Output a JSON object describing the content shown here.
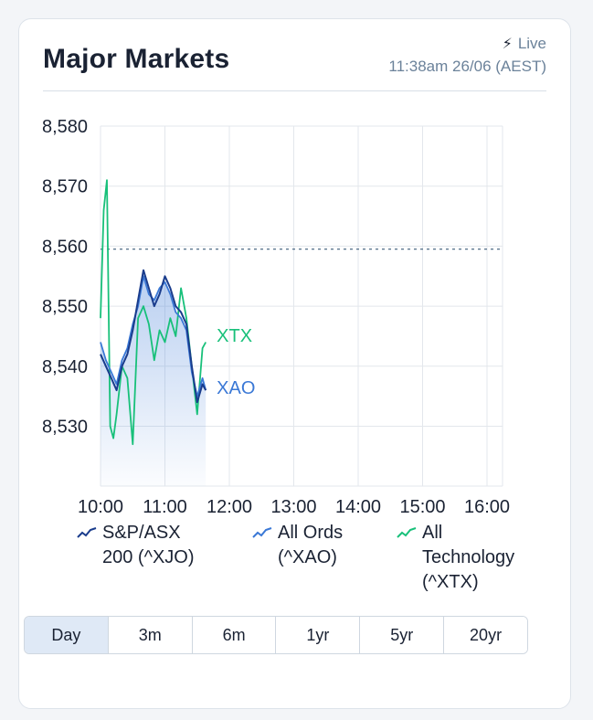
{
  "header": {
    "title": "Major Markets",
    "live_label": "Live",
    "timestamp": "11:38am 26/06 (AEST)"
  },
  "colors": {
    "xjo": "#1a3c8c",
    "xao": "#3a78d6",
    "xtx": "#18c07a",
    "grid": "#e3e7ec",
    "dashed": "#3f5d7a"
  },
  "chart_data": {
    "type": "line",
    "x_ticks": [
      "10:00",
      "11:00",
      "12:00",
      "13:00",
      "14:00",
      "15:00",
      "16:00"
    ],
    "y_ticks": [
      "8,580",
      "8,570",
      "8,560",
      "8,550",
      "8,540",
      "8,530"
    ],
    "ylim": [
      8520,
      8580
    ],
    "xlim": [
      "10:00",
      "16:10"
    ],
    "reference_line": 8559.5,
    "grid": true,
    "series": [
      {
        "name": "S&P/ASX 200 (^XJO)",
        "color_key": "xjo",
        "x": [
          "10:00",
          "10:05",
          "10:10",
          "10:15",
          "10:20",
          "10:25",
          "10:30",
          "10:35",
          "10:40",
          "10:45",
          "10:50",
          "10:55",
          "11:00",
          "11:05",
          "11:10",
          "11:15",
          "11:20",
          "11:25",
          "11:30",
          "11:35",
          "11:38"
        ],
        "y": [
          8542,
          8540,
          8538,
          8536,
          8540,
          8542,
          8546,
          8551,
          8556,
          8553,
          8550,
          8552,
          8555,
          8553,
          8550,
          8549,
          8547,
          8540,
          8534,
          8537,
          8536
        ]
      },
      {
        "name": "All Ords (^XAO)",
        "end_label": "XAO",
        "color_key": "xao",
        "x": [
          "10:00",
          "10:05",
          "10:10",
          "10:15",
          "10:20",
          "10:25",
          "10:30",
          "10:35",
          "10:40",
          "10:45",
          "10:50",
          "10:55",
          "11:00",
          "11:05",
          "11:10",
          "11:15",
          "11:20",
          "11:25",
          "11:30",
          "11:35",
          "11:38"
        ],
        "y": [
          8544,
          8541,
          8539,
          8537,
          8541,
          8543,
          8547,
          8550,
          8555,
          8552,
          8551,
          8553,
          8554,
          8552,
          8549,
          8548,
          8546,
          8539,
          8535,
          8538,
          8536
        ]
      },
      {
        "name": "All Technology (^XTX)",
        "end_label": "XTX",
        "color_key": "xtx",
        "x": [
          "10:00",
          "10:03",
          "10:06",
          "10:09",
          "10:12",
          "10:15",
          "10:20",
          "10:25",
          "10:30",
          "10:35",
          "10:40",
          "10:45",
          "10:50",
          "10:55",
          "11:00",
          "11:05",
          "11:10",
          "11:15",
          "11:20",
          "11:25",
          "11:30",
          "11:35",
          "11:38"
        ],
        "y": [
          8548,
          8566,
          8571,
          8530,
          8528,
          8532,
          8540,
          8538,
          8527,
          8548,
          8550,
          8547,
          8541,
          8546,
          8544,
          8548,
          8545,
          8553,
          8548,
          8540,
          8532,
          8543,
          8544
        ]
      }
    ]
  },
  "legend": [
    {
      "lines": [
        "S&P/ASX",
        "200 (^XJO)"
      ],
      "color_key": "xjo"
    },
    {
      "lines": [
        "All Ords",
        "(^XAO)"
      ],
      "color_key": "xao"
    },
    {
      "lines": [
        "All",
        "Technology",
        "(^XTX)"
      ],
      "color_key": "xtx"
    }
  ],
  "tabs": {
    "items": [
      "Day",
      "3m",
      "6m",
      "1yr",
      "5yr",
      "20yr"
    ],
    "active": "Day"
  }
}
